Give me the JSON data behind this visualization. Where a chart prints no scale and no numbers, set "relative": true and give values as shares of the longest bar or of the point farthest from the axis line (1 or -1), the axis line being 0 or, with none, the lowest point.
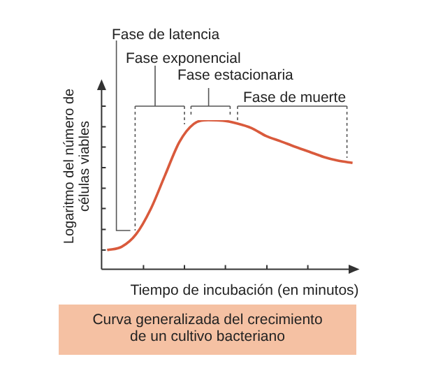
{
  "chart_data": {
    "type": "line",
    "title": "Curva generalizada del crecimiento de un cultivo bacteriano",
    "xlabel": "Tiempo de incubación (en minutos)",
    "ylabel": "Logaritmo del número de células viables",
    "relative": true,
    "marker": "none",
    "color": "#d95a3c",
    "categories": [
      null,
      null,
      null,
      null,
      null,
      null,
      null,
      null,
      null,
      null,
      null,
      null,
      null,
      null,
      null,
      null,
      null,
      null
    ],
    "values": [
      0.128,
      0.15,
      0.234,
      0.4,
      0.628,
      0.853,
      0.975,
      1.0,
      0.997,
      0.978,
      0.947,
      0.894,
      0.859,
      0.822,
      0.788,
      0.753,
      0.728,
      0.713
    ],
    "annotations": [
      "Fase de latencia",
      "Fase exponencial",
      "Fase estacionaria",
      "Fase de muerte"
    ]
  }
}
